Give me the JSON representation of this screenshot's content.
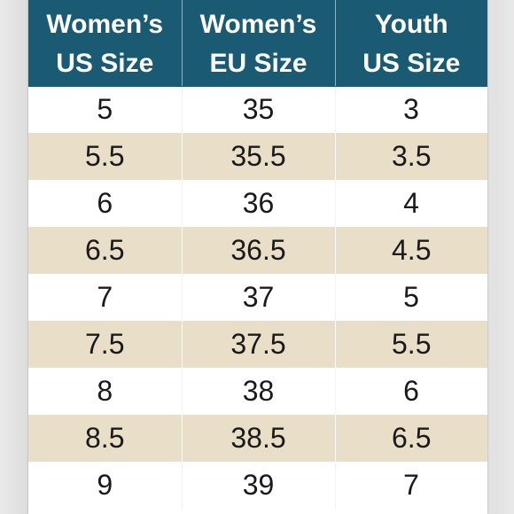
{
  "colors": {
    "header_bg": "#1b5a73",
    "header_text": "#ffffff",
    "row_alt": "#e9dfc8",
    "row_plain": "#ffffff"
  },
  "table": {
    "headers": [
      {
        "line1": "Women’s",
        "line2": "US Size"
      },
      {
        "line1": "Women’s",
        "line2": "EU Size"
      },
      {
        "line1": "Youth",
        "line2": "US Size"
      }
    ],
    "rows": [
      [
        "5",
        "35",
        "3"
      ],
      [
        "5.5",
        "35.5",
        "3.5"
      ],
      [
        "6",
        "36",
        "4"
      ],
      [
        "6.5",
        "36.5",
        "4.5"
      ],
      [
        "7",
        "37",
        "5"
      ],
      [
        "7.5",
        "37.5",
        "5.5"
      ],
      [
        "8",
        "38",
        "6"
      ],
      [
        "8.5",
        "38.5",
        "6.5"
      ],
      [
        "9",
        "39",
        "7"
      ]
    ]
  }
}
